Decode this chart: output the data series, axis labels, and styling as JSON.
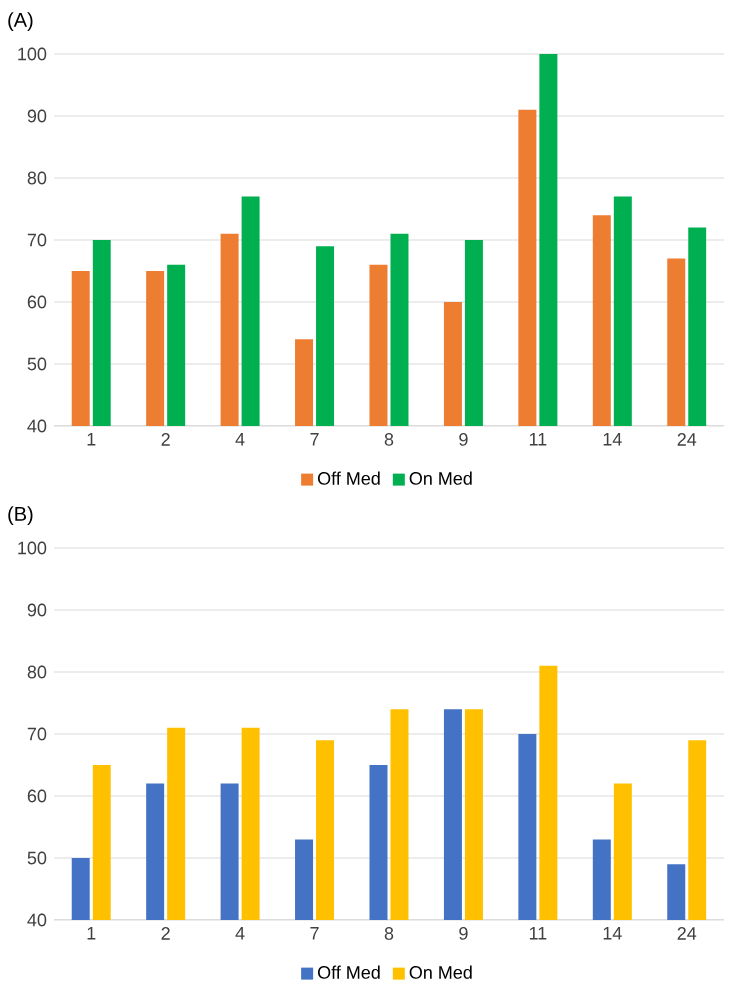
{
  "chart_data": [
    {
      "type": "bar",
      "title": "(A)",
      "categories": [
        "1",
        "2",
        "4",
        "7",
        "8",
        "9",
        "11",
        "14",
        "24"
      ],
      "series": [
        {
          "name": "Off Med",
          "color": "#ed7d31",
          "values": [
            65,
            65,
            71,
            54,
            66,
            60,
            91,
            74,
            67
          ]
        },
        {
          "name": "On Med",
          "color": "#00b050",
          "values": [
            70,
            66,
            77,
            69,
            71,
            70,
            100,
            77,
            72
          ]
        }
      ],
      "ylim": [
        40,
        100
      ],
      "yticks": [
        40,
        50,
        60,
        70,
        80,
        90,
        100
      ],
      "grid": "y",
      "legend": "bottom"
    },
    {
      "type": "bar",
      "title": "(B)",
      "categories": [
        "1",
        "2",
        "4",
        "7",
        "8",
        "9",
        "11",
        "14",
        "24"
      ],
      "series": [
        {
          "name": "Off Med",
          "color": "#4472c4",
          "values": [
            50,
            62,
            62,
            53,
            65,
            74,
            70,
            53,
            49
          ]
        },
        {
          "name": "On Med",
          "color": "#ffc000",
          "values": [
            65,
            71,
            71,
            69,
            74,
            74,
            81,
            62,
            69
          ]
        }
      ],
      "ylim": [
        40,
        100
      ],
      "yticks": [
        40,
        50,
        60,
        70,
        80,
        90,
        100
      ],
      "grid": "y",
      "legend": "bottom"
    }
  ]
}
